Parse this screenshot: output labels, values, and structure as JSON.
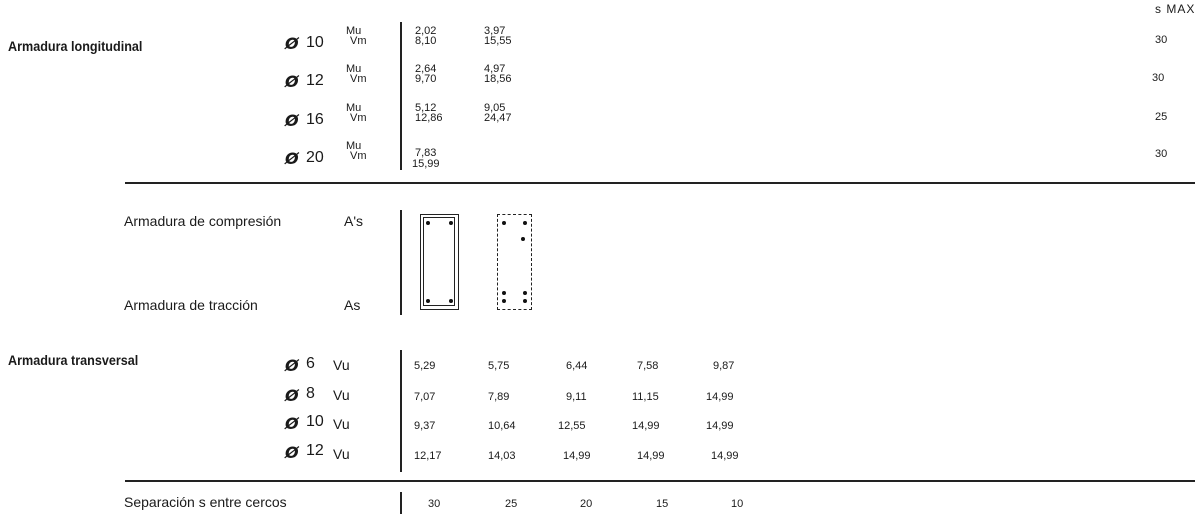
{
  "smax_header": "s MAX",
  "longitudinal": {
    "title": "Armadura longitudinal",
    "rows": [
      {
        "phi": "Ø",
        "diameter": "10",
        "mu_label": "Mu",
        "vm_label": "Vm",
        "mu": [
          "2,02",
          "3,97"
        ],
        "vm": [
          "8,10",
          "15,55"
        ],
        "smax": "30"
      },
      {
        "phi": "Ø",
        "diameter": "12",
        "mu_label": "Mu",
        "vm_label": "Vm",
        "mu": [
          "2,64",
          "4,97"
        ],
        "vm": [
          "9,70",
          "18,56"
        ],
        "smax": "30"
      },
      {
        "phi": "Ø",
        "diameter": "16",
        "mu_label": "Mu",
        "vm_label": "Vm",
        "mu": [
          "5,12",
          "9,05"
        ],
        "vm": [
          "12,86",
          "24,47"
        ],
        "smax": "25"
      },
      {
        "phi": "Ø",
        "diameter": "20",
        "mu_label": "Mu",
        "vm_label": "Vm",
        "mu": [
          "7,83"
        ],
        "vm": [
          "15,99"
        ],
        "smax": "30"
      }
    ]
  },
  "compression": {
    "label": "Armadura de compresión",
    "symbol": "A's"
  },
  "traction": {
    "label": "Armadura de tracción",
    "symbol": "As"
  },
  "transversal": {
    "title": "Armadura transversal",
    "rows": [
      {
        "phi": "Ø",
        "diameter": "6",
        "vu": "Vu",
        "values": [
          "5,29",
          "5,75",
          "6,44",
          "7,58",
          "9,87"
        ]
      },
      {
        "phi": "Ø",
        "diameter": "8",
        "vu": "Vu",
        "values": [
          "7,07",
          "7,89",
          "9,11",
          "11,15",
          "14,99"
        ]
      },
      {
        "phi": "Ø",
        "diameter": "10",
        "vu": "Vu",
        "values": [
          "9,37",
          "10,64",
          "12,55",
          "14,99",
          "14,99"
        ]
      },
      {
        "phi": "Ø",
        "diameter": "12",
        "vu": "Vu",
        "values": [
          "12,17",
          "14,03",
          "14,99",
          "14,99",
          "14,99"
        ]
      }
    ]
  },
  "separation": {
    "label": "Separación s entre cercos",
    "values": [
      "30",
      "25",
      "20",
      "15",
      "10"
    ]
  }
}
